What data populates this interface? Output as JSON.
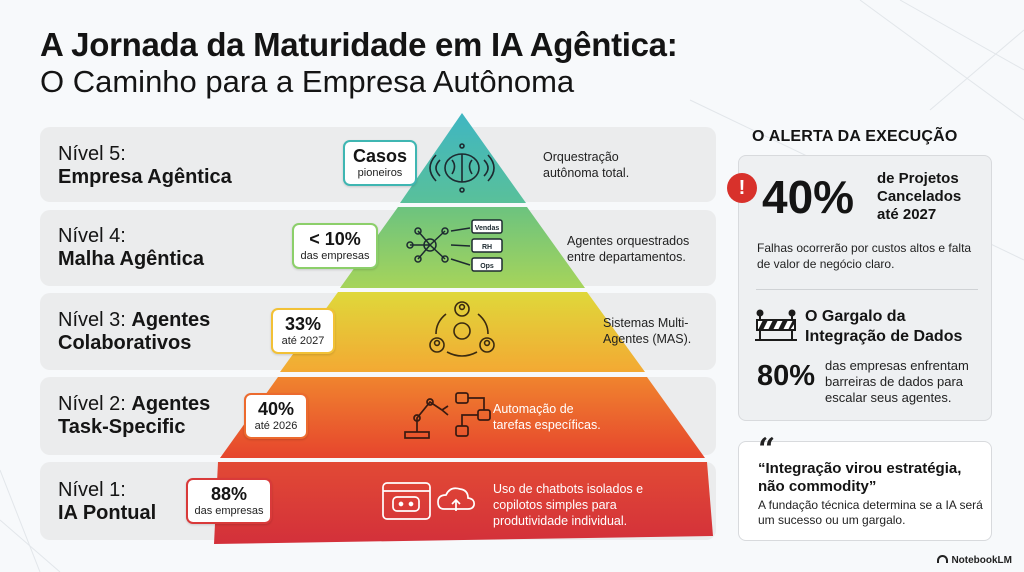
{
  "title": {
    "line1": "A Jornada da Maturidade em IA Agêntica:",
    "line2": "O Caminho para a Empresa Autônoma"
  },
  "levels": [
    {
      "level_prefix": "Nível 5:",
      "level_name": "Empresa Agêntica",
      "stat_value": "Casos",
      "stat_sub": "pioneiros",
      "description": "Orquestração autônoma total.",
      "icon": "brain-network-icon",
      "color": "#3fb6b2"
    },
    {
      "level_prefix": "Nível 4:",
      "level_name": "Malha Agêntica",
      "stat_value": "< 10%",
      "stat_sub": "das empresas",
      "description": "Agentes orquestrados entre departamentos.",
      "icon": "agent-mesh-icon",
      "mesh_labels": [
        "Vendas",
        "RH",
        "Ops"
      ],
      "color": "#8ccf6a"
    },
    {
      "level_prefix": "Nível 3:",
      "level_name": "Agentes Colaborativos",
      "stat_value": "33%",
      "stat_sub": "até 2027",
      "description": "Sistemas Multi-Agentes (MAS).",
      "icon": "collaborating-agents-icon",
      "color": "#f2c136"
    },
    {
      "level_prefix": "Nível 2:",
      "level_name": "Agentes Task-Specific",
      "stat_value": "40%",
      "stat_sub": "até 2026",
      "description": "Automação de tarefas específicas.",
      "icon": "robot-arm-workflow-icon",
      "color": "#ec6a2e"
    },
    {
      "level_prefix": "Nível 1:",
      "level_name": "IA Pontual",
      "stat_value": "88%",
      "stat_sub": "das empresas",
      "description": "Uso de chatbots isolados e copilotos simples para produtividade individual.",
      "icon": "chatbot-cloud-icon",
      "color": "#d93a3a"
    }
  ],
  "alert": {
    "heading": "O ALERTA DA EXECUÇÃO",
    "icon": "exclamation-icon",
    "main_value": "40%",
    "main_text": "de Projetos Cancelados até 2027",
    "note": "Falhas ocorrerão por custos altos e falta de valor de negócio claro.",
    "bottleneck_title": "O Gargalo da Integração de Dados",
    "bottleneck_icon": "barrier-icon",
    "bottleneck_value": "80%",
    "bottleneck_text": "das empresas enfrentam barreiras de dados para escalar seus agentes."
  },
  "quote": {
    "mark": "“",
    "text": "“Integração virou estratégia, não commodity”",
    "sub": "A fundação técnica determina se a IA será um sucesso ou um gargalo."
  },
  "brand": {
    "name": "NotebookLM",
    "icon": "notebooklm-logo-icon"
  }
}
